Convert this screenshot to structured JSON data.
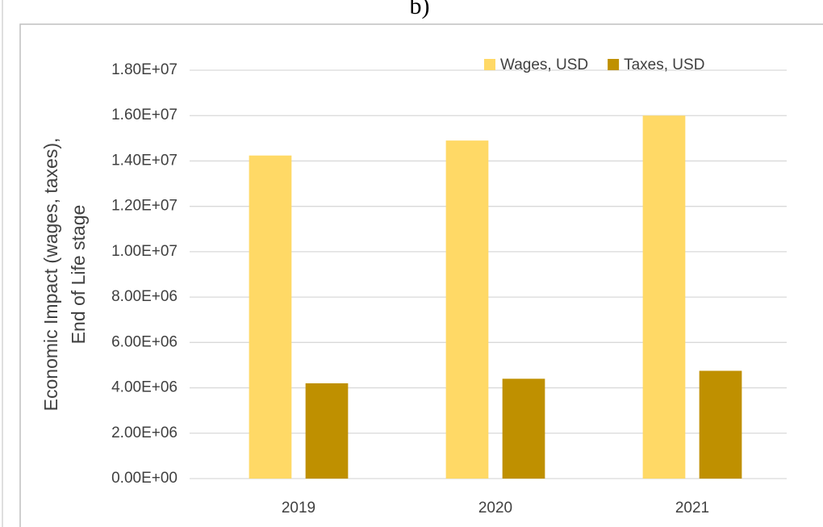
{
  "chart_data": {
    "type": "bar",
    "title": "b)",
    "ylabel": [
      "Economic Impact (wages, taxes),",
      "End of Life stage"
    ],
    "categories": [
      "2019",
      "2020",
      "2021"
    ],
    "series": [
      {
        "name": "Wages, USD",
        "color": "#ffd966",
        "values": [
          14240000,
          14900000,
          16000000
        ]
      },
      {
        "name": "Taxes, USD",
        "color": "#bf9000",
        "values": [
          4200000,
          4400000,
          4750000
        ]
      }
    ],
    "ylim": [
      0,
      18000000
    ],
    "yticks": [
      {
        "value": 0,
        "label": "0.00E+00"
      },
      {
        "value": 2000000,
        "label": "2.00E+06"
      },
      {
        "value": 4000000,
        "label": "4.00E+06"
      },
      {
        "value": 6000000,
        "label": "6.00E+06"
      },
      {
        "value": 8000000,
        "label": "8.00E+06"
      },
      {
        "value": 10000000,
        "label": "1.00E+07"
      },
      {
        "value": 12000000,
        "label": "1.20E+07"
      },
      {
        "value": 14000000,
        "label": "1.40E+07"
      },
      {
        "value": 16000000,
        "label": "1.60E+07"
      },
      {
        "value": 18000000,
        "label": "1.80E+07"
      }
    ],
    "grid": true,
    "legend": "top-right"
  }
}
